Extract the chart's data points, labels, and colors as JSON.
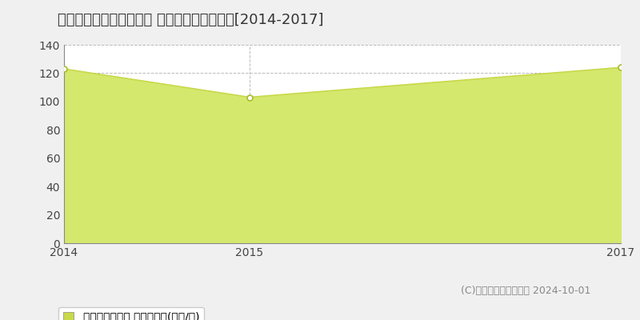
{
  "title": "札幌市北区北二十六条西 マンション価格推移[2014-2017]",
  "x_values": [
    2014,
    2015,
    2017
  ],
  "y_values": [
    123,
    103,
    124
  ],
  "xlim": [
    2014,
    2017
  ],
  "ylim": [
    0,
    140
  ],
  "yticks": [
    0,
    20,
    40,
    60,
    80,
    100,
    120,
    140
  ],
  "xticks": [
    2014,
    2015,
    2017
  ],
  "line_color": "#c8d94a",
  "fill_color": "#d4e86e",
  "fill_alpha": 1.0,
  "marker_color": "#ffffff",
  "marker_edge_color": "#a8bc30",
  "grid_color": "#bbbbbb",
  "bg_color": "#f0f0f0",
  "plot_bg_color": "#ffffff",
  "legend_label": "マンション価格 平均坪単価(万円/坪)",
  "legend_square_color": "#c8d94a",
  "copyright_text": "(C)土地価格ドットコム 2024-10-01",
  "title_fontsize": 13,
  "axis_fontsize": 10,
  "legend_fontsize": 10,
  "copyright_fontsize": 9
}
